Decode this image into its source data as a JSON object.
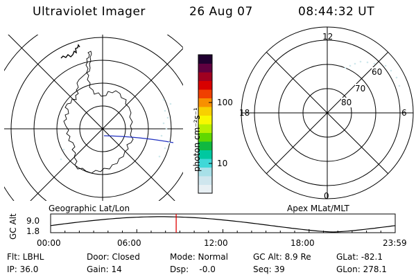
{
  "header": {
    "title": "Ultraviolet Imager",
    "date": "26 Aug 07",
    "time": "08:44:32 UT"
  },
  "colorbar": {
    "unit_label": "photon cm⁻²s⁻¹",
    "ticks": [
      "100",
      "10"
    ],
    "colors": [
      "#e8f0f4",
      "#cfe6ee",
      "#a8e0e8",
      "#40d8d8",
      "#00c8a0",
      "#10b840",
      "#60d800",
      "#b8f000",
      "#f8f800",
      "#f8d000",
      "#f89000",
      "#f04000",
      "#d80000",
      "#a00020",
      "#600040",
      "#200030"
    ]
  },
  "geo_panel": {
    "caption": "Geographic Lat/Lon"
  },
  "mag_panel": {
    "caption": "Apex MLat/MLT",
    "mlt_labels": {
      "top": "12",
      "left": "18",
      "right": "6",
      "bottom": "0"
    },
    "lat_labels": [
      "60",
      "70",
      "80"
    ]
  },
  "timeline": {
    "ylabel": "GC Alt",
    "y_ticks": [
      "9.0",
      "1.8"
    ],
    "x_ticks": [
      "00:00",
      "06:00",
      "12:00",
      "18:00",
      "23:59"
    ],
    "current_time_fraction": 0.3643
  },
  "info": {
    "row1": {
      "flt": "Flt: LBHL",
      "door": "Door: Closed",
      "mode": "Mode: Normal",
      "gcalt": "GC Alt: 8.9 Re",
      "glat": "GLat: -82.1"
    },
    "row2": {
      "ip": "IP: 36.0",
      "gain": "Gain: 14",
      "dsp": "Dsp:    -0.0",
      "seq": "Seq: 39",
      "glon": "GLon: 278.1"
    }
  }
}
